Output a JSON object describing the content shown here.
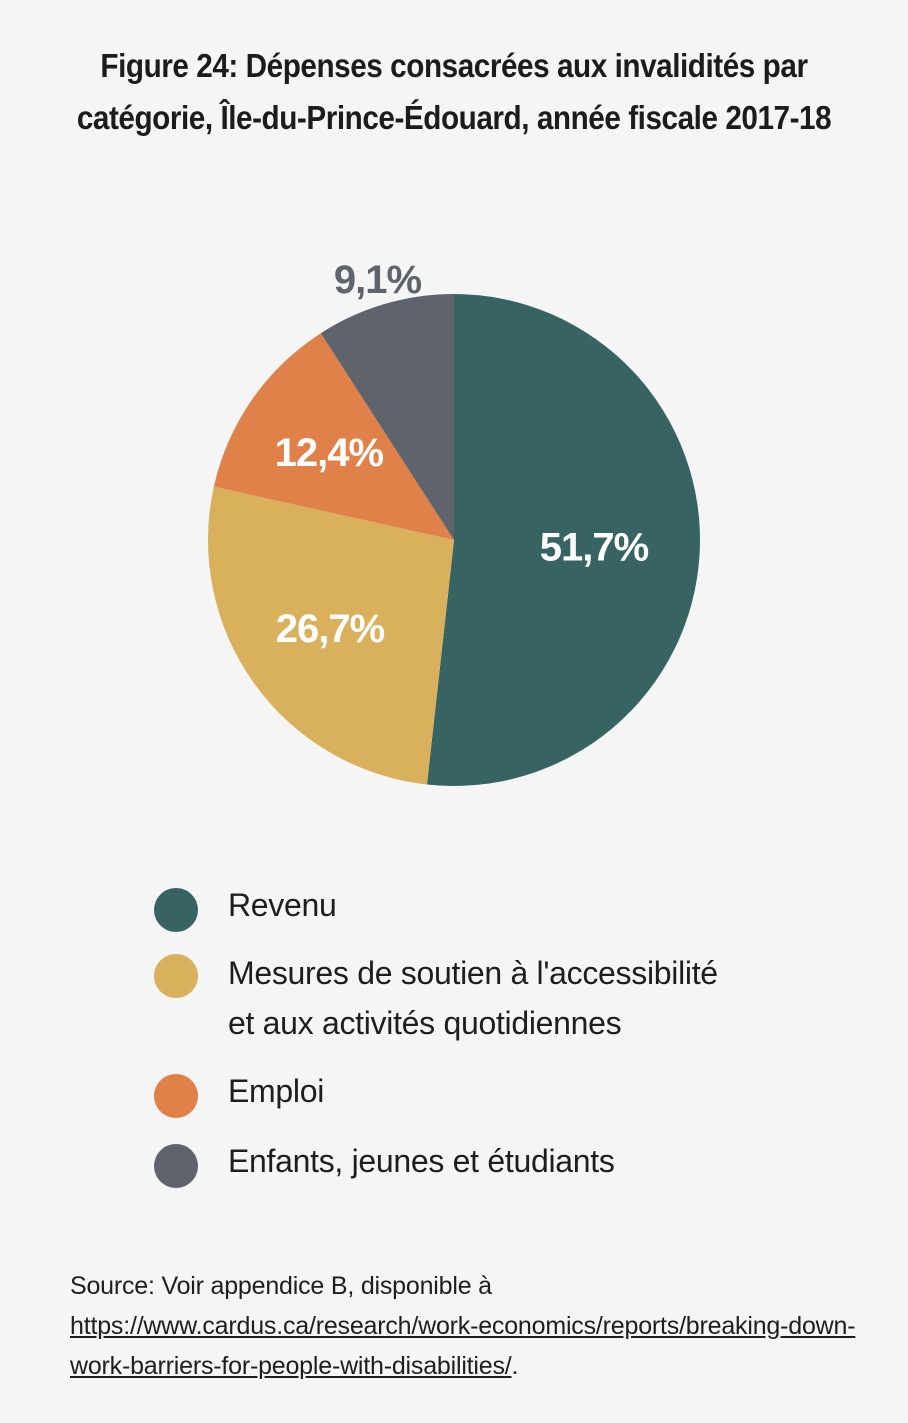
{
  "title": {
    "line1": "Figure 24: Dépenses consacrées aux invalidités par",
    "line2": "catégorie, Île-du-Prince-Édouard, année fiscale 2017-18"
  },
  "chart_data": {
    "type": "pie",
    "title": "Figure 24: Dépenses consacrées aux invalidités par catégorie, Île-du-Prince-Édouard, année fiscale 2017-18",
    "slices": [
      {
        "label": "Revenu",
        "value": 51.7,
        "display": "51,7%",
        "color": "#376463",
        "label_color": "#ffffff"
      },
      {
        "label": "Mesures de soutien à l'accessibilité et aux activités quotidiennes",
        "value": 26.7,
        "display": "26,7%",
        "color": "#d9b15c",
        "label_color": "#ffffff"
      },
      {
        "label": "Emploi",
        "value": 12.4,
        "display": "12,4%",
        "color": "#df8148",
        "label_color": "#ffffff"
      },
      {
        "label": "Enfants, jeunes et étudiants",
        "value": 9.1,
        "display": "9,1%",
        "color": "#5f636b",
        "label_color": "#5f636b"
      }
    ],
    "start_angle": "12 o'clock",
    "direction": "clockwise",
    "legend_position": "bottom"
  },
  "legend": {
    "items": [
      {
        "lines": [
          "Revenu"
        ],
        "color": "#376463"
      },
      {
        "lines": [
          "Mesures de soutien à l'accessibilité",
          "et aux activités quotidiennes"
        ],
        "color": "#d9b15c"
      },
      {
        "lines": [
          "Emploi"
        ],
        "color": "#df8148"
      },
      {
        "lines": [
          "Enfants, jeunes et étudiants"
        ],
        "color": "#5f636b"
      }
    ]
  },
  "source": {
    "prefix": "Source: Voir appendice B, disponible à ",
    "link": "https://www.cardus.ca/research/work-economics/reports/breaking-down-work-barriers-for-people-with-disabilities/",
    "suffix": "."
  }
}
